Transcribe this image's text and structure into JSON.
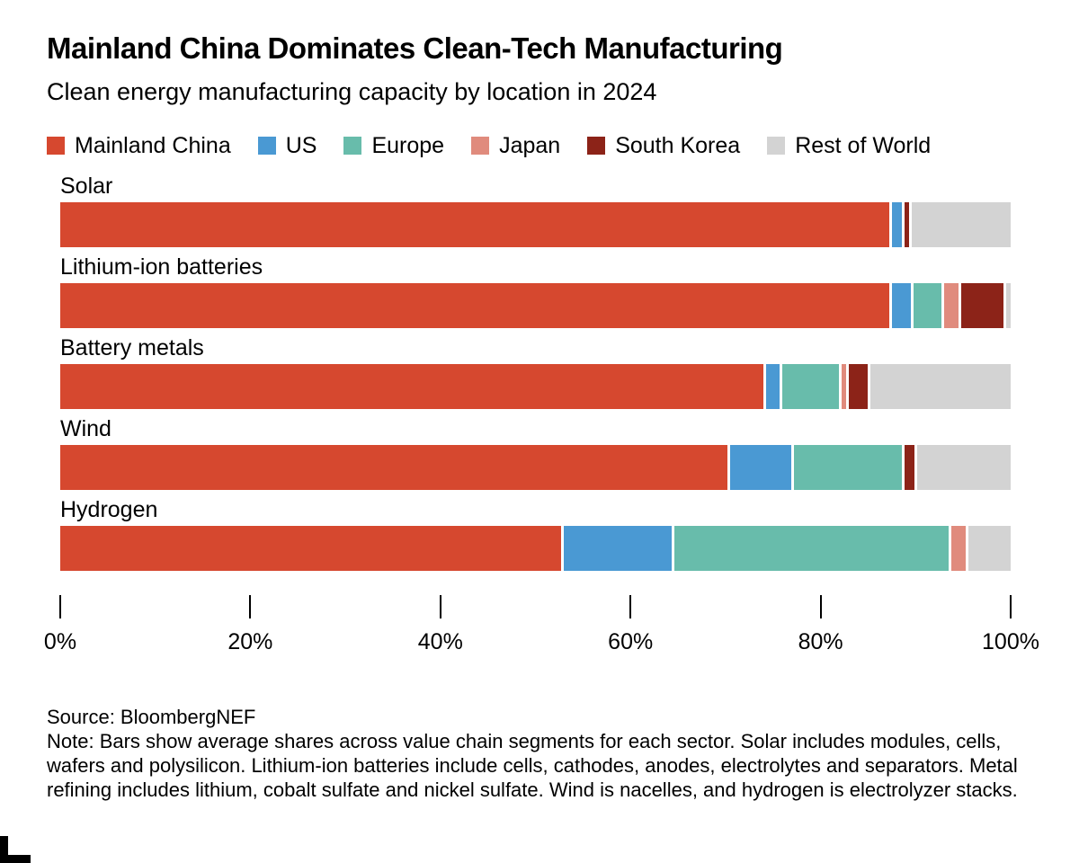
{
  "header": {
    "title": "Mainland China Dominates Clean-Tech Manufacturing",
    "subtitle": "Clean energy manufacturing capacity by location in 2024"
  },
  "legend": [
    {
      "label": "Mainland China",
      "color": "#d6482f"
    },
    {
      "label": "US",
      "color": "#4a99d3"
    },
    {
      "label": "Europe",
      "color": "#68bcab"
    },
    {
      "label": "Japan",
      "color": "#e08b7d"
    },
    {
      "label": "South Korea",
      "color": "#8c2318"
    },
    {
      "label": "Rest of World",
      "color": "#d3d3d3"
    }
  ],
  "chart_data": {
    "type": "bar",
    "stacked": true,
    "orientation": "horizontal",
    "title": "Clean energy manufacturing capacity by location in 2024",
    "categories": [
      "Solar",
      "Lithium-ion batteries",
      "Battery metals",
      "Wind",
      "Hydrogen"
    ],
    "series": [
      {
        "name": "Mainland China",
        "color": "#d6482f",
        "values": [
          88,
          88.5,
          75,
          71,
          53
        ]
      },
      {
        "name": "US",
        "color": "#4a99d3",
        "values": [
          1,
          2,
          1.5,
          6.5,
          11.5
        ]
      },
      {
        "name": "Europe",
        "color": "#68bcab",
        "values": [
          0,
          3,
          6,
          11.5,
          29
        ]
      },
      {
        "name": "Japan",
        "color": "#e08b7d",
        "values": [
          0,
          1.5,
          0.5,
          0,
          1.5
        ]
      },
      {
        "name": "South Korea",
        "color": "#8c2318",
        "values": [
          0.5,
          4.5,
          2,
          1,
          0
        ]
      },
      {
        "name": "Rest of World",
        "color": "#d3d3d3",
        "values": [
          10.5,
          0.5,
          15,
          10,
          4.5
        ]
      }
    ],
    "unit": "%",
    "xlim": [
      0,
      100
    ],
    "x_ticks": [
      0,
      20,
      40,
      60,
      80,
      100
    ],
    "x_tick_labels": [
      "0%",
      "20%",
      "40%",
      "60%",
      "80%",
      "100%"
    ],
    "xlabel": "",
    "ylabel": "",
    "grid": false,
    "legend_position": "top"
  },
  "footer": {
    "source": "Source: BloombergNEF",
    "note": "Note: Bars show average shares across value chain segments for each sector. Solar includes modules, cells, wafers and polysilicon. Lithium-ion batteries include cells, cathodes, anodes, electrolytes and separators. Metal refining includes lithium, cobalt sulfate and nickel sulfate. Wind is nacelles, and hydrogen is electrolyzer stacks."
  }
}
